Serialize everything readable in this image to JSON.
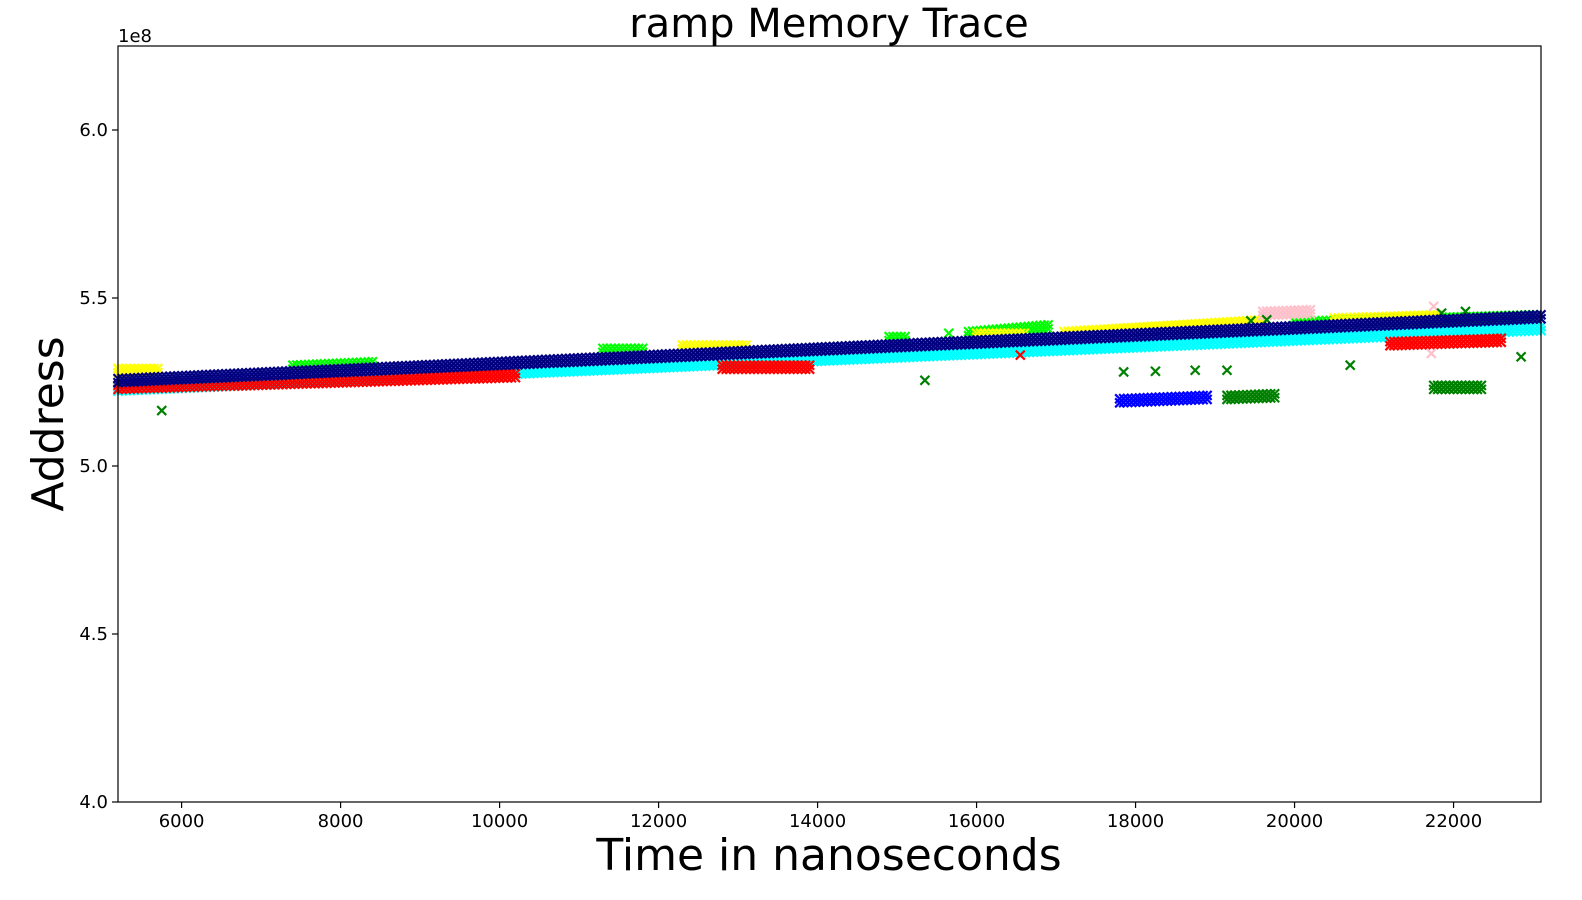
{
  "chart_data": {
    "type": "scatter",
    "title": "ramp Memory Trace",
    "xlabel": "Time in nanoseconds",
    "ylabel": "Address",
    "y_offset_label": "1e8",
    "xlim": [
      5200,
      23100
    ],
    "ylim": [
      4.0,
      6.25
    ],
    "x_ticks": [
      6000,
      8000,
      10000,
      12000,
      14000,
      16000,
      18000,
      20000,
      22000
    ],
    "x_tick_labels": [
      "6000",
      "8000",
      "10000",
      "12000",
      "14000",
      "16000",
      "18000",
      "20000",
      "22000"
    ],
    "y_ticks": [
      4.0,
      4.5,
      5.0,
      5.5,
      6.0
    ],
    "y_tick_labels": [
      "4.0",
      "4.5",
      "5.0",
      "5.5",
      "6.0"
    ],
    "marker": "x",
    "grid": false,
    "legend": "none",
    "series": [
      {
        "color": "#00ffff",
        "segments": [
          {
            "x": [
              5200,
              23100
            ],
            "y": [
              5.235,
              5.415
            ]
          }
        ]
      },
      {
        "color": "#00ff00",
        "segments": [
          {
            "x": [
              7400,
              8400
            ],
            "y": [
              5.3,
              5.31
            ]
          },
          {
            "x": [
              11300,
              11800
            ],
            "y": [
              5.35,
              5.35
            ]
          },
          {
            "x": [
              14900,
              15100
            ],
            "y": [
              5.385,
              5.385
            ]
          },
          {
            "x": [
              15900,
              16900
            ],
            "y": [
              5.4,
              5.42
            ]
          },
          {
            "x": [
              20000,
              23000
            ],
            "y": [
              5.43,
              5.45
            ]
          }
        ],
        "points": [
          {
            "x": 15650,
            "y": 5.395
          }
        ]
      },
      {
        "color": "#ffff00",
        "segments": [
          {
            "x": [
              5200,
              5700
            ],
            "y": [
              5.29,
              5.29
            ]
          },
          {
            "x": [
              7400,
              8200
            ],
            "y": [
              5.28,
              5.28
            ]
          },
          {
            "x": [
              12300,
              13100
            ],
            "y": [
              5.36,
              5.36
            ]
          },
          {
            "x": [
              16000,
              16600
            ],
            "y": [
              5.395,
              5.395
            ]
          },
          {
            "x": [
              17100,
              19600
            ],
            "y": [
              5.4,
              5.435
            ]
          },
          {
            "x": [
              20500,
              21800
            ],
            "y": [
              5.44,
              5.45
            ]
          }
        ]
      },
      {
        "color": "#ff0000",
        "segments": [
          {
            "x": [
              5200,
              10200
            ],
            "y": [
              5.24,
              5.275
            ]
          },
          {
            "x": [
              12800,
              13900
            ],
            "y": [
              5.3,
              5.3
            ]
          },
          {
            "x": [
              21200,
              22600
            ],
            "y": [
              5.37,
              5.38
            ]
          }
        ],
        "points": [
          {
            "x": 16550,
            "y": 5.33
          }
        ]
      },
      {
        "color": "#ffc0cb",
        "segments": [
          {
            "x": [
              19600,
              20200
            ],
            "y": [
              5.46,
              5.465
            ]
          }
        ],
        "points": [
          {
            "x": 21750,
            "y": 5.475
          },
          {
            "x": 21720,
            "y": 5.335
          }
        ]
      },
      {
        "color": "#0000ff",
        "segments": [
          {
            "x": [
              17800,
              18900
            ],
            "y": [
              5.2,
              5.21
            ]
          }
        ]
      },
      {
        "color": "#008000",
        "segments": [
          {
            "x": [
              19150,
              19750
            ],
            "y": [
              5.21,
              5.215
            ]
          },
          {
            "x": [
              21750,
              22350
            ],
            "y": [
              5.24,
              5.24
            ]
          }
        ],
        "points": [
          {
            "x": 5750,
            "y": 5.165
          },
          {
            "x": 15350,
            "y": 5.255
          },
          {
            "x": 17850,
            "y": 5.28
          },
          {
            "x": 18250,
            "y": 5.282
          },
          {
            "x": 18750,
            "y": 5.285
          },
          {
            "x": 19150,
            "y": 5.285
          },
          {
            "x": 20700,
            "y": 5.3
          },
          {
            "x": 22850,
            "y": 5.325
          },
          {
            "x": 19450,
            "y": 5.432
          },
          {
            "x": 19650,
            "y": 5.435
          },
          {
            "x": 21850,
            "y": 5.455
          },
          {
            "x": 22150,
            "y": 5.46
          }
        ]
      },
      {
        "color": "#000080",
        "segments": [
          {
            "x": [
              5200,
              23100
            ],
            "y": [
              5.26,
              5.45
            ]
          }
        ]
      }
    ]
  }
}
